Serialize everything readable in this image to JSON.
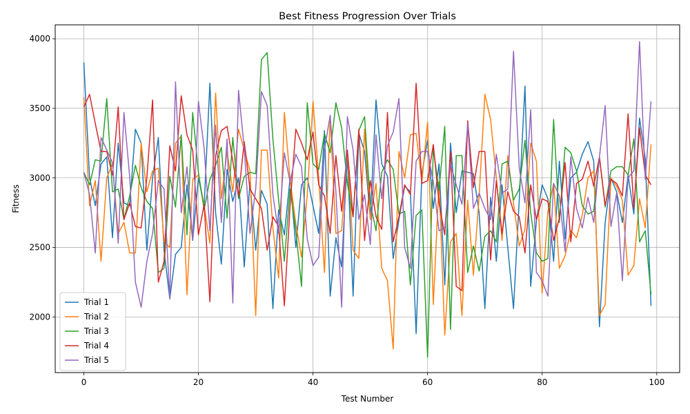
{
  "chart_data": {
    "type": "line",
    "title": "Best Fitness Progression Over Trials",
    "xlabel": "Test Number",
    "ylabel": "Fitness",
    "xlim": [
      -5,
      104
    ],
    "ylim": [
      1600,
      4100
    ],
    "xticks": [
      0,
      20,
      40,
      60,
      80,
      100
    ],
    "yticks": [
      2000,
      2500,
      3000,
      3500,
      4000
    ],
    "grid": true,
    "legend_position": "lower-left",
    "x_start": 0,
    "series": [
      {
        "name": "Trial 1",
        "color": "#1f77b4",
        "values": [
          3830,
          3000,
          2800,
          3100,
          3150,
          2570,
          3250,
          2820,
          2800,
          3350,
          3250,
          2480,
          3000,
          3290,
          2480,
          2130,
          2450,
          2500,
          2950,
          2550,
          3000,
          2800,
          3680,
          2750,
          2380,
          3060,
          2830,
          3000,
          2360,
          2970,
          2480,
          2910,
          2810,
          2060,
          2770,
          2590,
          3000,
          2500,
          2950,
          3000,
          2800,
          2600,
          3340,
          2150,
          2570,
          2360,
          3160,
          2150,
          3320,
          3190,
          2710,
          3560,
          3100,
          3010,
          2420,
          2700,
          2940,
          2900,
          1880,
          3030,
          3270,
          2780,
          3100,
          2230,
          3250,
          2750,
          3050,
          3040,
          3030,
          2750,
          2060,
          2860,
          2400,
          2950,
          2500,
          2060,
          2840,
          3660,
          2220,
          2690,
          2950,
          2850,
          2400,
          3120,
          2560,
          3000,
          3040,
          3170,
          3260,
          3120,
          1930,
          2680,
          3000,
          2900,
          2680,
          3020,
          2740,
          3430,
          3140,
          2080
        ]
      },
      {
        "name": "Trial 2",
        "color": "#ff7f0e",
        "values": [
          3580,
          2800,
          2980,
          2400,
          3000,
          3100,
          2600,
          2680,
          2460,
          2460,
          3250,
          2900,
          3050,
          3070,
          2540,
          2500,
          3250,
          3300,
          2160,
          2990,
          3020,
          2800,
          2530,
          3610,
          2850,
          3190,
          2900,
          3350,
          3200,
          3050,
          2010,
          3200,
          3200,
          2640,
          2280,
          3470,
          2990,
          2670,
          2430,
          2880,
          3550,
          3000,
          2320,
          3440,
          2600,
          2620,
          3200,
          2480,
          2420,
          3350,
          2700,
          2960,
          2350,
          2260,
          1770,
          3190,
          3000,
          3310,
          3320,
          2970,
          3400,
          2090,
          2970,
          1870,
          2540,
          2600,
          2010,
          2840,
          2300,
          2870,
          3600,
          3420,
          3000,
          2550,
          3160,
          2820,
          2510,
          2630,
          3250,
          3120,
          2170,
          2760,
          2960,
          2350,
          2440,
          2620,
          2570,
          2730,
          3000,
          3050,
          2010,
          2090,
          3000,
          2940,
          2840,
          2300,
          2370,
          2850,
          2640,
          3240
        ]
      },
      {
        "name": "Trial 3",
        "color": "#2ca02c",
        "values": [
          3040,
          2950,
          3130,
          3120,
          3570,
          2900,
          2920,
          2700,
          2870,
          3090,
          2930,
          2830,
          2780,
          2320,
          2350,
          3010,
          2790,
          3310,
          2590,
          3470,
          3040,
          2770,
          2990,
          3090,
          3220,
          2710,
          3290,
          2850,
          3010,
          3040,
          3030,
          3850,
          3900,
          3280,
          2840,
          2400,
          2920,
          2620,
          2220,
          3540,
          3100,
          3060,
          3320,
          3180,
          3540,
          3360,
          2960,
          2720,
          3340,
          3440,
          2820,
          2620,
          3040,
          3130,
          3060,
          2740,
          2760,
          2230,
          2730,
          2770,
          1710,
          3210,
          2910,
          3370,
          1910,
          3160,
          3160,
          2320,
          2510,
          2330,
          2580,
          2620,
          2540,
          3100,
          3120,
          2840,
          2920,
          3270,
          2750,
          2460,
          2400,
          2420,
          3420,
          2680,
          3220,
          3180,
          3050,
          2800,
          2740,
          2760,
          3150,
          2790,
          3050,
          3080,
          3080,
          3020,
          3280,
          2540,
          2620,
          2160
        ]
      },
      {
        "name": "Trial 4",
        "color": "#d62728",
        "values": [
          3510,
          3600,
          3390,
          3190,
          3190,
          3020,
          3510,
          2700,
          2820,
          2650,
          2640,
          3000,
          3560,
          2250,
          2400,
          3230,
          3050,
          3590,
          3310,
          3200,
          2590,
          2810,
          2110,
          3160,
          3340,
          3370,
          3120,
          2870,
          3260,
          2920,
          2850,
          2780,
          2480,
          2720,
          2650,
          2080,
          2800,
          3350,
          3250,
          3130,
          3330,
          2950,
          2870,
          2600,
          3160,
          2760,
          3200,
          2720,
          3350,
          2550,
          2980,
          2720,
          2630,
          3470,
          2540,
          2720,
          2950,
          2880,
          3680,
          2960,
          2980,
          3240,
          2820,
          2590,
          3190,
          2220,
          2190,
          3410,
          2930,
          3190,
          3190,
          2410,
          2980,
          2600,
          2900,
          2760,
          2720,
          2460,
          2950,
          2700,
          2850,
          2830,
          2550,
          2710,
          3110,
          2540,
          2960,
          2990,
          3120,
          2940,
          3150,
          2800,
          2990,
          2960,
          2870,
          3460,
          2780,
          3360,
          3020,
          2950
        ]
      },
      {
        "name": "Trial 5",
        "color": "#9467bd",
        "values": [
          3040,
          2880,
          2460,
          3290,
          3200,
          3110,
          2530,
          3470,
          3010,
          2250,
          2070,
          2400,
          2600,
          2980,
          2920,
          2130,
          3690,
          2750,
          3080,
          2560,
          3550,
          3210,
          2620,
          3380,
          2680,
          3280,
          2100,
          3630,
          3210,
          2600,
          2920,
          3620,
          3520,
          2880,
          2600,
          3180,
          2970,
          3170,
          3080,
          2560,
          2370,
          2430,
          3200,
          3450,
          2900,
          2070,
          3440,
          3200,
          2700,
          2880,
          2520,
          3310,
          2850,
          3230,
          3330,
          3570,
          2500,
          2350,
          3120,
          3190,
          3190,
          2970,
          2620,
          2640,
          3100,
          2950,
          2810,
          3390,
          2780,
          2890,
          2780,
          2700,
          3170,
          2890,
          2920,
          3910,
          3070,
          2820,
          3490,
          2320,
          2260,
          2150,
          2960,
          2870,
          2470,
          3150,
          2780,
          2640,
          2860,
          2680,
          3150,
          3520,
          2650,
          2890,
          2260,
          3000,
          3050,
          3980,
          2990,
          3550
        ]
      }
    ]
  }
}
